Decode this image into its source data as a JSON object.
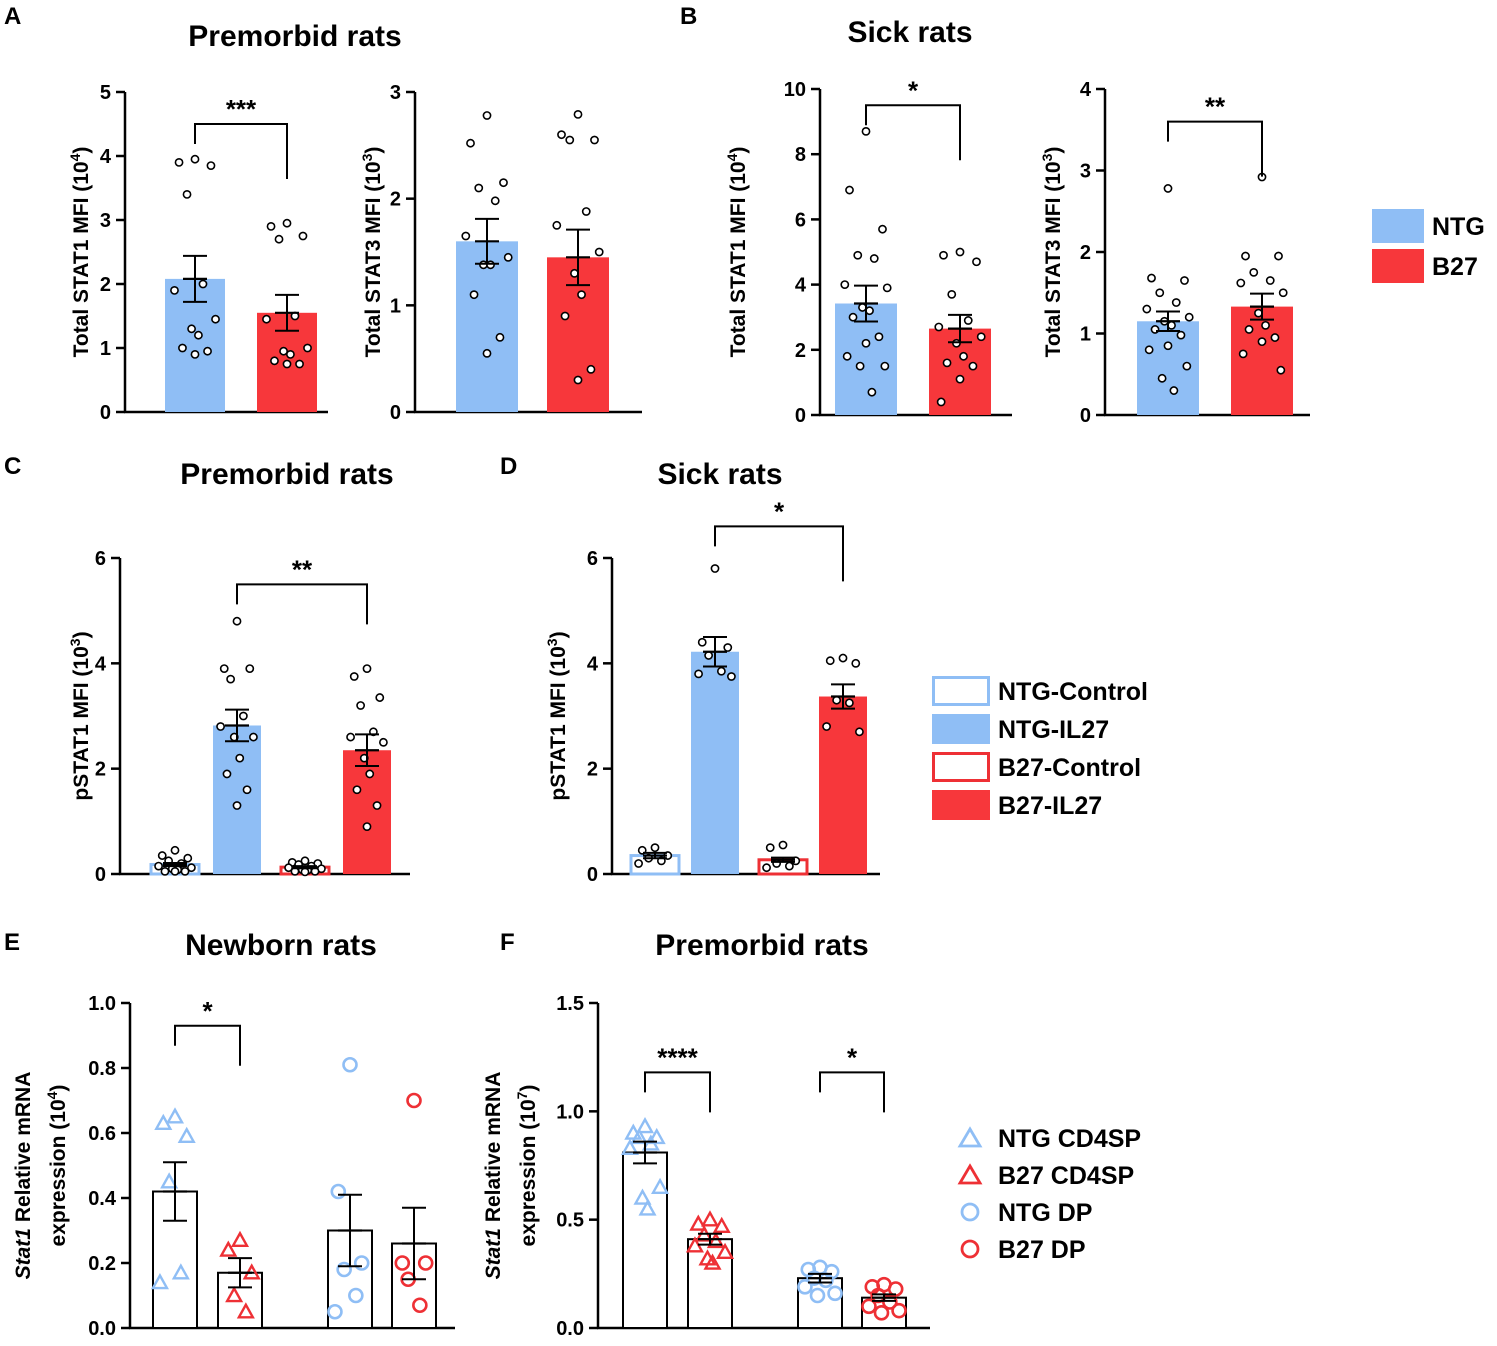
{
  "colors": {
    "ntg": "#8fbef5",
    "b27": "#f7373b",
    "ntg_line": "#8fbef5",
    "b27_line": "#ee3035",
    "axis": "#000000"
  },
  "panels": {
    "A": "A",
    "B": "B",
    "C": "C",
    "D": "D",
    "E": "E",
    "F": "F"
  },
  "legends": {
    "AB": [
      {
        "label": "NTG",
        "style": "fill-ntg"
      },
      {
        "label": "B27",
        "style": "fill-b27"
      }
    ],
    "CD": [
      {
        "label": "NTG-Control",
        "style": "open-ntg"
      },
      {
        "label": "NTG-IL27",
        "style": "fill-ntg"
      },
      {
        "label": "B27-Control",
        "style": "open-b27"
      },
      {
        "label": "B27-IL27",
        "style": "fill-b27"
      }
    ],
    "EF": [
      {
        "label": "NTG CD4SP",
        "style": "tri-ntg"
      },
      {
        "label": "B27 CD4SP",
        "style": "tri-b27"
      },
      {
        "label": "NTG DP",
        "style": "circ-ntg"
      },
      {
        "label": "B27 DP",
        "style": "circ-b27"
      }
    ]
  },
  "chart_data": [
    {
      "id": "A1",
      "panel": "A",
      "type": "bar",
      "title": "Premorbid rats",
      "ylabel": "Total STAT1 MFI",
      "ylabel_exp": "(10",
      "ylabel_sup": "4",
      "ylabel_close": ")",
      "ylim": [
        0,
        5
      ],
      "yticks": [
        "0",
        "1",
        "2",
        "3",
        "4",
        "5"
      ],
      "categories": [
        "NTG",
        "B27"
      ],
      "bars": [
        {
          "name": "NTG",
          "style": "fill-ntg",
          "mean": 2.08,
          "sem": 0.36,
          "points": [
            3.95,
            3.9,
            3.85,
            3.4,
            2.0,
            1.9,
            1.45,
            1.3,
            1.2,
            1.0,
            0.95,
            0.9
          ]
        },
        {
          "name": "B27",
          "style": "fill-b27",
          "mean": 1.55,
          "sem": 0.28,
          "points": [
            2.95,
            2.9,
            2.75,
            2.7,
            1.5,
            1.45,
            1.0,
            0.95,
            0.9,
            0.8,
            0.75,
            0.75
          ]
        }
      ],
      "sig": [
        {
          "from": 0,
          "to": 1,
          "label": "***",
          "y": 4.5
        }
      ]
    },
    {
      "id": "A2",
      "panel": "A",
      "type": "bar",
      "title": "",
      "ylabel": "Total STAT3 MFI",
      "ylabel_exp": "(10",
      "ylabel_sup": "3",
      "ylabel_close": ")",
      "ylim": [
        0,
        3
      ],
      "yticks": [
        "0",
        "1",
        "2",
        "3"
      ],
      "categories": [
        "NTG",
        "B27"
      ],
      "bars": [
        {
          "name": "NTG",
          "style": "fill-ntg",
          "mean": 1.6,
          "sem": 0.21,
          "points": [
            2.78,
            2.52,
            2.15,
            2.1,
            1.98,
            1.65,
            1.45,
            1.38,
            1.38,
            1.1,
            0.7,
            0.55
          ]
        },
        {
          "name": "B27",
          "style": "fill-b27",
          "mean": 1.45,
          "sem": 0.26,
          "points": [
            2.79,
            2.6,
            2.55,
            2.55,
            1.88,
            1.75,
            1.5,
            1.3,
            1.1,
            0.9,
            0.4,
            0.3
          ]
        }
      ],
      "sig": []
    },
    {
      "id": "B1",
      "panel": "B",
      "type": "bar",
      "title": "Sick rats",
      "ylabel": "Total STAT1 MFI",
      "ylabel_exp": "(10",
      "ylabel_sup": "4",
      "ylabel_close": ")",
      "ylim": [
        0,
        10
      ],
      "yticks": [
        "0",
        "2",
        "4",
        "6",
        "8",
        "10"
      ],
      "categories": [
        "NTG",
        "B27"
      ],
      "bars": [
        {
          "name": "NTG",
          "style": "fill-ntg",
          "mean": 3.42,
          "sem": 0.55,
          "points": [
            8.7,
            6.9,
            5.7,
            4.9,
            4.8,
            4.0,
            3.9,
            3.3,
            3.2,
            3.0,
            2.4,
            2.2,
            1.8,
            1.5,
            1.5,
            0.7
          ]
        },
        {
          "name": "B27",
          "style": "fill-b27",
          "mean": 2.65,
          "sem": 0.42,
          "points": [
            5.0,
            4.9,
            4.7,
            3.7,
            2.9,
            2.7,
            2.4,
            2.2,
            1.8,
            1.6,
            1.5,
            1.1,
            0.4
          ]
        }
      ],
      "sig": [
        {
          "from": 0,
          "to": 1,
          "label": "*",
          "y": 9.5
        }
      ]
    },
    {
      "id": "B2",
      "panel": "B",
      "type": "bar",
      "title": "",
      "ylabel": "Total STAT3 MFI",
      "ylabel_exp": "(10",
      "ylabel_sup": "3",
      "ylabel_close": ")",
      "ylim": [
        0,
        4
      ],
      "yticks": [
        "0",
        "1",
        "2",
        "3",
        "4"
      ],
      "categories": [
        "NTG",
        "B27"
      ],
      "bars": [
        {
          "name": "NTG",
          "style": "fill-ntg",
          "mean": 1.15,
          "sem": 0.12,
          "points": [
            2.78,
            1.68,
            1.65,
            1.5,
            1.38,
            1.3,
            1.2,
            1.15,
            1.1,
            1.05,
            0.98,
            0.85,
            0.8,
            0.6,
            0.45,
            0.3
          ]
        },
        {
          "name": "B27",
          "style": "fill-b27",
          "mean": 1.33,
          "sem": 0.16,
          "points": [
            2.92,
            1.95,
            1.95,
            1.75,
            1.65,
            1.62,
            1.5,
            1.25,
            1.1,
            1.05,
            0.95,
            0.9,
            0.75,
            0.55
          ]
        }
      ],
      "sig": [
        {
          "from": 0,
          "to": 1,
          "label": "**",
          "y": 3.6
        }
      ]
    },
    {
      "id": "C",
      "panel": "C",
      "type": "bar",
      "title": "Premorbid rats",
      "ylabel": "pSTAT1 MFI",
      "ylabel_exp": "(10",
      "ylabel_sup": "3",
      "ylabel_close": ")",
      "ylim": [
        0,
        6
      ],
      "yticks": [
        "0",
        "2",
        "4",
        "6"
      ],
      "categories": [
        "NTG-Control",
        "NTG-IL27",
        "B27-Control",
        "B27-IL27"
      ],
      "bars": [
        {
          "name": "NTG-Control",
          "style": "open-ntg",
          "mean": 0.18,
          "sem": 0.03,
          "points": [
            0.45,
            0.35,
            0.3,
            0.25,
            0.2,
            0.15,
            0.12,
            0.1,
            0.08,
            0.05,
            0.05,
            0.05
          ]
        },
        {
          "name": "NTG-IL27",
          "style": "fill-ntg",
          "mean": 2.82,
          "sem": 0.3,
          "points": [
            4.8,
            3.9,
            3.9,
            3.7,
            3.0,
            2.8,
            2.6,
            2.6,
            2.2,
            1.9,
            1.6,
            1.3
          ]
        },
        {
          "name": "B27-Control",
          "style": "open-b27",
          "mean": 0.13,
          "sem": 0.02,
          "points": [
            0.25,
            0.22,
            0.2,
            0.18,
            0.15,
            0.12,
            0.1,
            0.08,
            0.07,
            0.05,
            0.05,
            0.04
          ]
        },
        {
          "name": "B27-IL27",
          "style": "fill-b27",
          "mean": 2.35,
          "sem": 0.3,
          "points": [
            3.9,
            3.75,
            3.35,
            3.2,
            2.7,
            2.6,
            2.5,
            2.2,
            1.9,
            1.6,
            1.3,
            0.9
          ]
        }
      ],
      "sig": [
        {
          "from": 1,
          "to": 3,
          "label": "**",
          "y": 5.5
        }
      ]
    },
    {
      "id": "D",
      "panel": "D",
      "type": "bar",
      "title": "Sick rats",
      "ylabel": "pSTAT1 MFI",
      "ylabel_exp": "(10",
      "ylabel_sup": "3",
      "ylabel_close": ")",
      "ylim": [
        0,
        6
      ],
      "yticks": [
        "0",
        "2",
        "4",
        "6"
      ],
      "categories": [
        "NTG-Control",
        "NTG-IL27",
        "B27-Control",
        "B27-IL27"
      ],
      "bars": [
        {
          "name": "NTG-Control",
          "style": "open-ntg",
          "mean": 0.35,
          "sem": 0.05,
          "points": [
            0.5,
            0.45,
            0.35,
            0.3,
            0.25,
            0.2
          ]
        },
        {
          "name": "NTG-IL27",
          "style": "fill-ntg",
          "mean": 4.22,
          "sem": 0.28,
          "points": [
            5.8,
            4.4,
            4.3,
            4.15,
            3.85,
            3.8,
            3.75
          ]
        },
        {
          "name": "B27-Control",
          "style": "open-b27",
          "mean": 0.27,
          "sem": 0.04,
          "points": [
            0.55,
            0.5,
            0.25,
            0.2,
            0.15,
            0.12
          ]
        },
        {
          "name": "B27-IL27",
          "style": "fill-b27",
          "mean": 3.37,
          "sem": 0.23,
          "points": [
            4.1,
            4.05,
            4.0,
            3.3,
            3.25,
            2.8,
            2.7
          ]
        }
      ],
      "sig": [
        {
          "from": 1,
          "to": 3,
          "label": "*",
          "y": 6.6
        }
      ]
    },
    {
      "id": "E",
      "panel": "E",
      "type": "bar",
      "title": "Newborn rats",
      "ylabel_italic": "Stat1",
      "ylabel": " Relative mRNA",
      "ylabel2": "expression (10",
      "ylabel_sup": "4",
      "ylabel_close": ")",
      "ylim": [
        0,
        1.0
      ],
      "yticks": [
        "0.0",
        "0.2",
        "0.4",
        "0.6",
        "0.8",
        "1.0"
      ],
      "categories": [
        "NTG CD4SP",
        "B27 CD4SP",
        "NTG DP",
        "B27 DP"
      ],
      "bars": [
        {
          "name": "NTG CD4SP",
          "style": "open-black",
          "mean": 0.42,
          "sem": 0.09,
          "marker": "tri",
          "mcolor": "ntg",
          "points": [
            0.65,
            0.63,
            0.59,
            0.45,
            0.17,
            0.14
          ]
        },
        {
          "name": "B27 CD4SP",
          "style": "open-black",
          "mean": 0.17,
          "sem": 0.045,
          "marker": "tri",
          "mcolor": "b27",
          "points": [
            0.27,
            0.24,
            0.17,
            0.1,
            0.05
          ]
        },
        {
          "name": "NTG DP",
          "style": "open-black",
          "mean": 0.3,
          "sem": 0.11,
          "marker": "circ",
          "mcolor": "ntg",
          "points": [
            0.81,
            0.42,
            0.2,
            0.18,
            0.1,
            0.05
          ]
        },
        {
          "name": "B27 DP",
          "style": "open-black",
          "mean": 0.26,
          "sem": 0.11,
          "marker": "circ",
          "mcolor": "b27",
          "points": [
            0.7,
            0.2,
            0.2,
            0.15,
            0.07
          ]
        }
      ],
      "sig": [
        {
          "from": 0,
          "to": 1,
          "label": "*",
          "y": 0.93
        }
      ]
    },
    {
      "id": "F",
      "panel": "F",
      "type": "bar",
      "title": "Premorbid rats",
      "ylabel_italic": "Stat1",
      "ylabel": " Relative mRNA",
      "ylabel2": "expression (10",
      "ylabel_sup": "7",
      "ylabel_close": ")",
      "ylim": [
        0,
        1.5
      ],
      "yticks": [
        "0.0",
        "0.5",
        "1.0",
        "1.5"
      ],
      "categories": [
        "NTG CD4SP",
        "B27 CD4SP",
        "NTG DP",
        "B27 DP"
      ],
      "bars": [
        {
          "name": "NTG CD4SP",
          "style": "open-black",
          "mean": 0.81,
          "sem": 0.05,
          "marker": "tri",
          "mcolor": "ntg",
          "points": [
            0.93,
            0.9,
            0.88,
            0.88,
            0.85,
            0.83,
            0.65,
            0.6,
            0.55
          ]
        },
        {
          "name": "B27 CD4SP",
          "style": "open-black",
          "mean": 0.41,
          "sem": 0.025,
          "marker": "tri",
          "mcolor": "b27",
          "points": [
            0.5,
            0.48,
            0.47,
            0.43,
            0.4,
            0.38,
            0.35,
            0.32,
            0.3
          ]
        },
        {
          "name": "NTG DP",
          "style": "open-black",
          "mean": 0.23,
          "sem": 0.02,
          "marker": "circ",
          "mcolor": "ntg",
          "points": [
            0.28,
            0.27,
            0.26,
            0.23,
            0.22,
            0.19,
            0.16,
            0.15
          ]
        },
        {
          "name": "B27 DP",
          "style": "open-black",
          "mean": 0.14,
          "sem": 0.015,
          "marker": "circ",
          "mcolor": "b27",
          "points": [
            0.2,
            0.19,
            0.18,
            0.15,
            0.12,
            0.1,
            0.08,
            0.07
          ]
        }
      ],
      "sig": [
        {
          "from": 0,
          "to": 1,
          "label": "****",
          "y": 1.18
        },
        {
          "from": 2,
          "to": 3,
          "label": "*",
          "y": 1.18
        }
      ]
    }
  ]
}
